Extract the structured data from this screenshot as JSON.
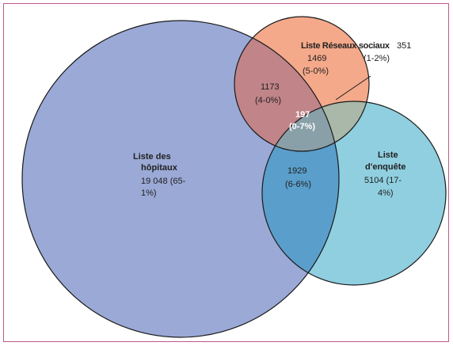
{
  "colors": {
    "frame": "#c0588a",
    "hospitals": "#9ba9d6",
    "social": "#f4a98a",
    "survey": "#8fcfe0",
    "hosp_social": "#c08489",
    "hosp_survey": "#5a9ecb",
    "social_survey": "#a9b8a8",
    "triple": "#8aa0a8",
    "outline": "#1a1a1a"
  },
  "sets": {
    "hospitals": {
      "name_line1": "Liste des",
      "name_line2": "hôpitaux",
      "count_line1": "19 048 (65-",
      "count_line2": "1%)"
    },
    "social": {
      "name": "Liste Réseaux sociaux",
      "count": "1469",
      "pct": "(5-0%)"
    },
    "survey": {
      "name_line1": "Liste",
      "name_line2": "d'enquête",
      "count": "5104 (17-",
      "pct": "4%)"
    }
  },
  "intersections": {
    "hosp_social": {
      "count": "1173",
      "pct": "(4-0%)"
    },
    "hosp_survey": {
      "count": "1929",
      "pct": "(6-6%)"
    },
    "social_survey": {
      "count": "351",
      "pct": "(1-2%)"
    },
    "all_three": {
      "count": "197",
      "pct": "(0-7%)"
    }
  }
}
